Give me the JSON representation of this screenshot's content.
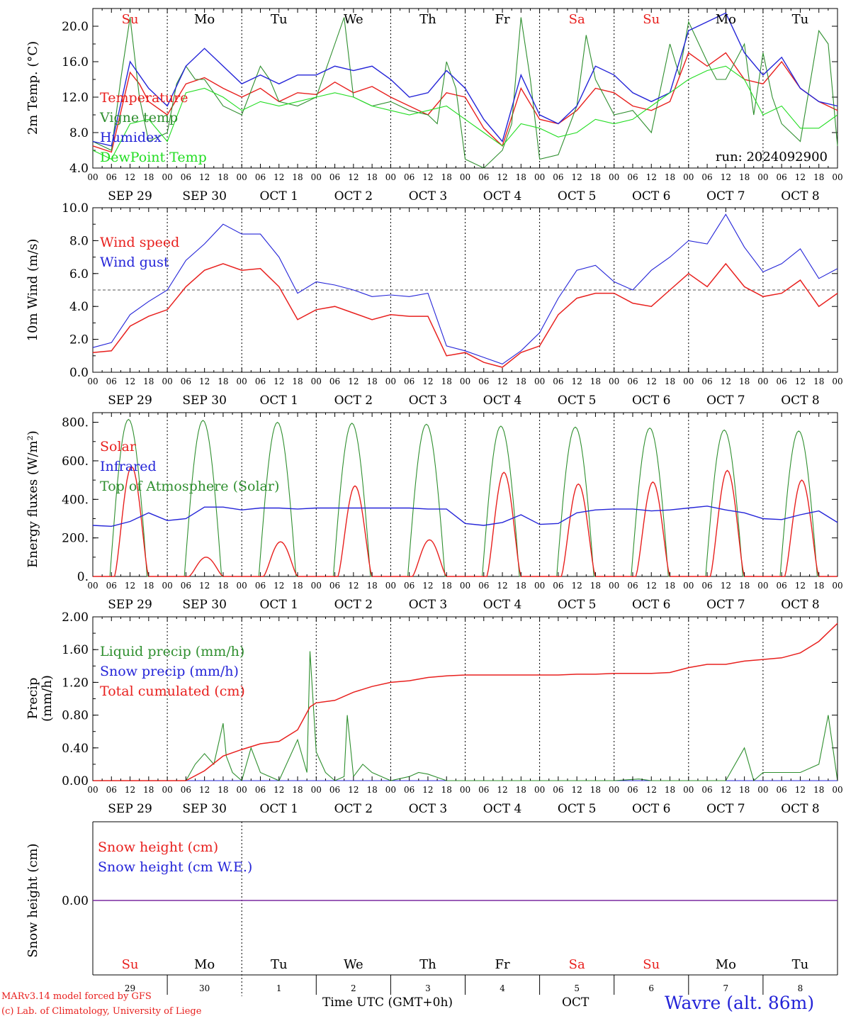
{
  "colors": {
    "red": "#e8201e",
    "green": "#2f8f2f",
    "blue": "#2424d8",
    "lightgreen": "#22dd22",
    "axis": "#000000",
    "purple": "#7a2aa0"
  },
  "days": [
    "Su",
    "Mo",
    "Tu",
    "We",
    "Th",
    "Fr",
    "Sa",
    "Su",
    "Mo",
    "Tu"
  ],
  "day_colors": [
    "#e8201e",
    "#000000",
    "#000000",
    "#000000",
    "#000000",
    "#000000",
    "#e8201e",
    "#e8201e",
    "#000000",
    "#000000"
  ],
  "hour_ticks": [
    "00",
    "06",
    "12",
    "18"
  ],
  "final_tick": "00",
  "date_labels": [
    "SEP 29",
    "SEP 30",
    "OCT  1",
    "OCT  2",
    "OCT  3",
    "OCT  4",
    "OCT  5",
    "OCT  6",
    "OCT  7",
    "OCT  8"
  ],
  "bottom_day_nums": [
    "29",
    "30",
    "1",
    "2",
    "3",
    "4",
    "5",
    "6",
    "7",
    "8"
  ],
  "footer": {
    "model_line": "MARv3.14 model forced by GFS",
    "lab_line": "(c) Lab. of Climatology, University of Liege",
    "time_label": "Time UTC (GMT+0h)",
    "month": "OCT",
    "station": "Wavre (alt. 86m)"
  },
  "chart_data": [
    {
      "type": "line",
      "ylabel": "2m Temp. (°C)",
      "ylim": [
        4.0,
        22.0
      ],
      "yticks": [
        "4.0",
        "8.0",
        "12.0",
        "16.0",
        "20.0"
      ],
      "annotation": "run: 2024092900",
      "series": [
        {
          "name": "Temperature",
          "color": "#e8201e",
          "x": [
            0,
            6,
            12,
            15,
            18,
            24,
            30,
            36,
            42,
            48,
            54,
            60,
            66,
            72,
            78,
            84,
            90,
            96,
            102,
            108,
            114,
            120,
            126,
            132,
            138,
            144,
            150,
            156,
            162,
            168,
            174,
            180,
            186,
            192,
            198,
            204,
            210,
            216,
            222,
            228,
            234,
            240
          ],
          "values": [
            6.5,
            5.8,
            14.8,
            13.5,
            11.5,
            10.0,
            13.5,
            14.2,
            13.0,
            12.0,
            13.0,
            11.5,
            12.5,
            12.3,
            13.7,
            12.5,
            13.2,
            12.0,
            11.0,
            10.0,
            12.5,
            12.0,
            8.5,
            6.5,
            13.0,
            9.5,
            9.0,
            10.5,
            13.0,
            12.5,
            11.0,
            10.5,
            11.5,
            17.0,
            15.5,
            17.0,
            14.0,
            13.5,
            16.0,
            13.0,
            11.5,
            10.5
          ]
        },
        {
          "name": "Vigne temp",
          "color": "#2f8f2f",
          "x": [
            0,
            6,
            9,
            12,
            15,
            18,
            24,
            27,
            30,
            33,
            36,
            42,
            48,
            54,
            57,
            60,
            66,
            72,
            78,
            81,
            84,
            90,
            96,
            102,
            108,
            111,
            114,
            117,
            120,
            126,
            132,
            135,
            138,
            141,
            144,
            150,
            156,
            159,
            162,
            165,
            168,
            174,
            180,
            186,
            189,
            192,
            198,
            201,
            204,
            210,
            213,
            216,
            219,
            222,
            228,
            234,
            237,
            240
          ],
          "values": [
            7.0,
            6.0,
            14.0,
            21.0,
            12.0,
            7.0,
            8.0,
            13.5,
            15.5,
            14.0,
            14.0,
            11.0,
            10.0,
            15.5,
            14.0,
            11.5,
            11.0,
            12.0,
            18.0,
            21.0,
            12.0,
            11.0,
            11.5,
            10.5,
            10.0,
            9.0,
            16.0,
            13.0,
            5.0,
            4.0,
            6.0,
            9.0,
            21.0,
            14.0,
            5.0,
            5.5,
            11.0,
            19.0,
            14.0,
            12.0,
            10.0,
            10.5,
            8.0,
            18.0,
            14.5,
            20.5,
            16.0,
            14.0,
            14.0,
            18.0,
            10.0,
            17.0,
            12.0,
            9.0,
            7.0,
            19.5,
            18.0,
            6.5
          ]
        },
        {
          "name": "Humidex",
          "color": "#2424d8",
          "x": [
            0,
            6,
            12,
            18,
            24,
            30,
            36,
            42,
            48,
            54,
            60,
            66,
            72,
            78,
            84,
            90,
            96,
            102,
            108,
            114,
            120,
            126,
            132,
            138,
            144,
            150,
            156,
            162,
            168,
            174,
            180,
            186,
            192,
            198,
            204,
            210,
            216,
            222,
            228,
            234,
            240
          ],
          "values": [
            7.0,
            6.5,
            16.0,
            13.0,
            11.0,
            15.5,
            17.5,
            15.5,
            13.5,
            14.5,
            13.5,
            14.5,
            14.5,
            15.5,
            15.0,
            15.5,
            14.0,
            12.0,
            12.5,
            15.0,
            13.0,
            9.5,
            7.0,
            14.5,
            10.0,
            9.0,
            11.0,
            15.5,
            14.5,
            12.5,
            11.5,
            12.5,
            19.5,
            20.5,
            21.5,
            17.0,
            14.5,
            16.5,
            13.0,
            11.5,
            11.0
          ]
        },
        {
          "name": "DewPoint Temp",
          "color": "#22dd22",
          "x": [
            0,
            6,
            12,
            18,
            24,
            30,
            36,
            42,
            48,
            54,
            60,
            66,
            72,
            78,
            84,
            90,
            96,
            102,
            108,
            114,
            120,
            126,
            132,
            138,
            144,
            150,
            156,
            162,
            168,
            174,
            180,
            186,
            192,
            198,
            204,
            210,
            216,
            222,
            228,
            234,
            240
          ],
          "values": [
            6.0,
            5.0,
            9.0,
            9.5,
            7.0,
            12.5,
            13.0,
            12.0,
            10.5,
            11.5,
            11.0,
            11.5,
            12.0,
            12.5,
            12.0,
            11.0,
            10.5,
            10.0,
            10.5,
            11.0,
            9.5,
            8.0,
            6.5,
            9.0,
            8.5,
            7.5,
            8.0,
            9.5,
            9.0,
            9.5,
            11.0,
            12.5,
            14.0,
            15.0,
            15.5,
            14.0,
            10.0,
            11.0,
            8.5,
            8.5,
            10.0
          ]
        }
      ]
    },
    {
      "type": "line",
      "ylabel": "10m Wind (m/s)",
      "ylim": [
        0.0,
        10.0
      ],
      "yticks": [
        "0.0",
        "2.0",
        "4.0",
        "6.0",
        "8.0",
        "10.0"
      ],
      "reference_line": 5.0,
      "series": [
        {
          "name": "Wind speed",
          "color": "#e8201e",
          "x": [
            0,
            6,
            12,
            18,
            24,
            30,
            36,
            42,
            48,
            54,
            60,
            66,
            72,
            78,
            84,
            90,
            96,
            102,
            108,
            114,
            120,
            126,
            132,
            138,
            144,
            150,
            156,
            162,
            168,
            174,
            180,
            186,
            192,
            198,
            204,
            210,
            216,
            222,
            228,
            234,
            240
          ],
          "values": [
            1.2,
            1.3,
            2.8,
            3.4,
            3.8,
            5.2,
            6.2,
            6.6,
            6.2,
            6.3,
            5.2,
            3.2,
            3.8,
            4.0,
            3.6,
            3.2,
            3.5,
            3.4,
            3.4,
            1.0,
            1.2,
            0.6,
            0.3,
            1.2,
            1.6,
            3.5,
            4.5,
            4.8,
            4.8,
            4.2,
            4.0,
            5.0,
            6.0,
            5.2,
            6.6,
            5.2,
            4.6,
            4.8,
            5.6,
            4.0,
            4.8
          ]
        },
        {
          "name": "Wind gust",
          "color": "#2424d8",
          "x": [
            0,
            6,
            12,
            18,
            24,
            30,
            36,
            42,
            48,
            54,
            60,
            66,
            72,
            78,
            84,
            90,
            96,
            102,
            108,
            114,
            120,
            126,
            132,
            138,
            144,
            150,
            156,
            162,
            168,
            174,
            180,
            186,
            192,
            198,
            204,
            210,
            216,
            222,
            228,
            234,
            240
          ],
          "values": [
            1.5,
            1.8,
            3.5,
            4.3,
            5.0,
            6.8,
            7.8,
            9.0,
            8.4,
            8.4,
            7.0,
            4.8,
            5.5,
            5.3,
            5.0,
            4.6,
            4.7,
            4.6,
            4.8,
            1.6,
            1.3,
            0.9,
            0.5,
            1.3,
            2.4,
            4.5,
            6.2,
            6.5,
            5.5,
            5.0,
            6.2,
            7.0,
            8.0,
            7.8,
            9.6,
            7.6,
            6.1,
            6.6,
            7.5,
            5.7,
            6.3
          ]
        }
      ]
    },
    {
      "type": "line",
      "ylabel": "Energy fluxes (W/m²)",
      "ylim": [
        0,
        850
      ],
      "yticks": [
        "0.",
        "200.",
        "400.",
        "600.",
        "800."
      ],
      "series": [
        {
          "name": "Solar",
          "color": "#e8201e",
          "peaks": [
            570,
            100,
            180,
            470,
            190,
            540,
            480,
            490,
            550,
            500
          ]
        },
        {
          "name": "Infrared",
          "color": "#2424d8",
          "x": [
            0,
            6,
            12,
            18,
            24,
            30,
            36,
            42,
            48,
            54,
            60,
            66,
            72,
            78,
            84,
            90,
            96,
            102,
            108,
            114,
            120,
            126,
            132,
            138,
            144,
            150,
            156,
            162,
            168,
            174,
            180,
            186,
            192,
            198,
            204,
            210,
            216,
            222,
            228,
            234,
            240
          ],
          "values": [
            265,
            260,
            285,
            330,
            290,
            300,
            360,
            360,
            345,
            355,
            355,
            350,
            355,
            355,
            355,
            355,
            355,
            355,
            350,
            350,
            275,
            265,
            280,
            320,
            270,
            275,
            330,
            345,
            350,
            350,
            340,
            345,
            355,
            365,
            345,
            330,
            300,
            295,
            320,
            340,
            280
          ]
        },
        {
          "name": "Top of Atmosphere (Solar)",
          "color": "#2f8f2f",
          "peaks": [
            815,
            810,
            800,
            795,
            790,
            780,
            775,
            770,
            760,
            755
          ]
        }
      ]
    },
    {
      "type": "line",
      "ylabel": "Precip",
      "ylabel_units": "(mm/h)",
      "ylim": [
        0.0,
        2.0
      ],
      "yticks": [
        "0.00",
        "0.40",
        "0.80",
        "1.20",
        "1.60",
        "2.00"
      ],
      "series": [
        {
          "name": "Liquid precip (mm/h)",
          "color": "#2f8f2f",
          "x": [
            0,
            30,
            33,
            36,
            39,
            42,
            43,
            45,
            48,
            51,
            54,
            60,
            66,
            69,
            70,
            72,
            75,
            78,
            81,
            82,
            84,
            87,
            90,
            93,
            96,
            102,
            105,
            108,
            114,
            120,
            126,
            138,
            150,
            168,
            176,
            180,
            192,
            204,
            210,
            213,
            216,
            222,
            228,
            234,
            237,
            240
          ],
          "values": [
            0,
            0,
            0.2,
            0.33,
            0.2,
            0.7,
            0.3,
            0.1,
            0,
            0.4,
            0.1,
            0,
            0.5,
            0.1,
            1.58,
            0.35,
            0.1,
            0,
            0.05,
            0.8,
            0.05,
            0.2,
            0.1,
            0.05,
            0,
            0.05,
            0.1,
            0.08,
            0,
            0,
            0,
            0,
            0,
            0,
            0.02,
            0,
            0,
            0,
            0.4,
            0,
            0.1,
            0.1,
            0.1,
            0.2,
            0.8,
            0
          ]
        },
        {
          "name": "Snow precip (mm/h)",
          "color": "#2424d8",
          "x": [
            0,
            240
          ],
          "values": [
            0,
            0
          ]
        },
        {
          "name": "Total cumulated (cm)",
          "color": "#e8201e",
          "x": [
            0,
            30,
            36,
            42,
            48,
            54,
            60,
            66,
            70,
            72,
            78,
            84,
            90,
            96,
            102,
            108,
            114,
            120,
            126,
            132,
            138,
            144,
            150,
            156,
            162,
            168,
            174,
            180,
            186,
            192,
            198,
            204,
            210,
            216,
            222,
            228,
            234,
            240
          ],
          "values": [
            0,
            0,
            0.12,
            0.3,
            0.38,
            0.45,
            0.48,
            0.62,
            0.9,
            0.95,
            0.98,
            1.08,
            1.15,
            1.2,
            1.22,
            1.26,
            1.28,
            1.29,
            1.29,
            1.29,
            1.29,
            1.29,
            1.29,
            1.3,
            1.3,
            1.31,
            1.31,
            1.31,
            1.32,
            1.38,
            1.42,
            1.42,
            1.46,
            1.48,
            1.5,
            1.56,
            1.7,
            1.92
          ]
        }
      ]
    },
    {
      "type": "line",
      "ylabel": "Snow height (cm)",
      "yticks": [
        "0.00"
      ],
      "series": [
        {
          "name": "Snow height (cm)",
          "color": "#e8201e",
          "x": [
            0,
            240
          ],
          "values": [
            0,
            0
          ]
        },
        {
          "name": "Snow height (cm W.E.)",
          "color": "#2424d8",
          "x": [
            0,
            240
          ],
          "values": [
            0,
            0
          ]
        }
      ]
    }
  ]
}
